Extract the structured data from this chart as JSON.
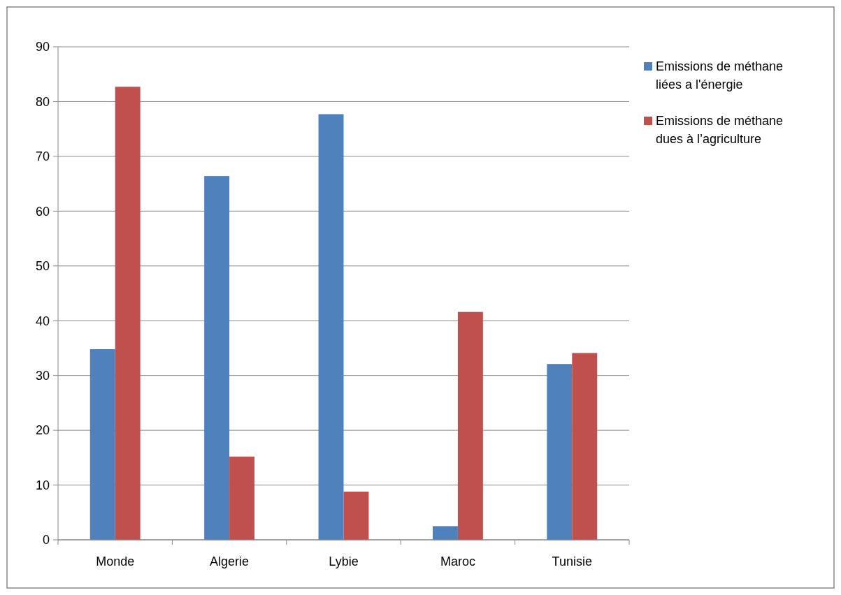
{
  "chart_data": {
    "type": "bar",
    "categories": [
      "Monde",
      "Algerie",
      "Lybie",
      "Maroc",
      "Tunisie"
    ],
    "series": [
      {
        "name": "Emissions de méthane liées a l'énergie",
        "color": "#4f81bd",
        "values": [
          34.8,
          66.4,
          77.7,
          2.5,
          32.1
        ]
      },
      {
        "name": "Emissions de méthane dues à l’agriculture",
        "color": "#c0504d",
        "values": [
          82.7,
          15.2,
          8.8,
          41.6,
          34.1
        ]
      }
    ],
    "ylim": [
      0,
      90
    ],
    "yticks": [
      0,
      10,
      20,
      30,
      40,
      50,
      60,
      70,
      80,
      90
    ],
    "grid": "y",
    "legend": "right"
  }
}
